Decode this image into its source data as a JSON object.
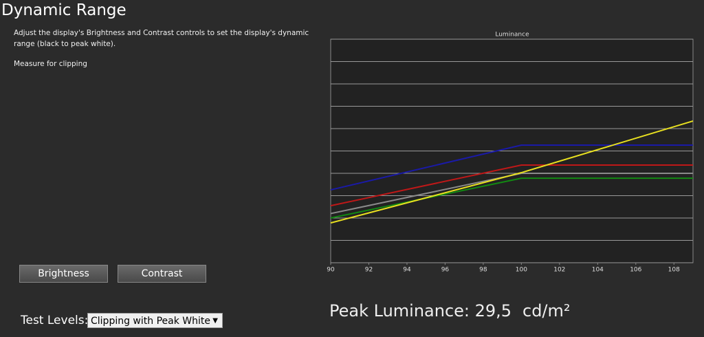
{
  "header": {
    "title": "Dynamic Range"
  },
  "description": "Adjust the display's Brightness and Contrast controls to set the display's dynamic range (black to peak white).",
  "instruction": "Measure for clipping",
  "buttons": [
    "Brightness",
    "Contrast"
  ],
  "test_levels": {
    "label": "Test Levels:",
    "selected": "Clipping with Peak White"
  },
  "peak": {
    "label": "Peak Luminance: 29,5",
    "unit": "cd/m²"
  },
  "chart_data": {
    "type": "line",
    "title": "Luminance",
    "x": [
      90,
      100,
      109
    ],
    "xlim": [
      90,
      109
    ],
    "xticks": [
      90,
      92,
      94,
      96,
      98,
      100,
      102,
      104,
      106,
      108
    ],
    "ylim": [
      0,
      10
    ],
    "yticks": [
      0,
      1,
      2,
      3,
      4,
      5,
      6,
      7,
      8,
      9,
      10
    ],
    "grid": true,
    "series": [
      {
        "color": "#1a1aa8",
        "values": [
          3.26,
          5.26,
          5.26
        ]
      },
      {
        "color": "#c01818",
        "values": [
          2.55,
          4.37,
          4.37
        ]
      },
      {
        "color": "#8a8a8a",
        "values": [
          2.2,
          4.0,
          4.0
        ]
      },
      {
        "color": "#128a12",
        "values": [
          2.0,
          3.78,
          3.78
        ]
      },
      {
        "color": "#e8e020",
        "values": [
          1.78,
          4.03,
          6.34
        ]
      }
    ]
  }
}
